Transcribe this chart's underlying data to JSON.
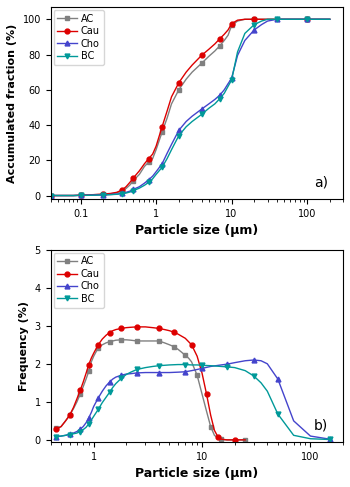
{
  "title_a": "a)",
  "title_b": "b)",
  "xlabel": "Particle size (μm)",
  "ylabel_a": "Accumulated fraction (%)",
  "ylabel_b": "Frequency (%)",
  "ylim_a": [
    -2,
    107
  ],
  "ylim_b": [
    -0.05,
    5
  ],
  "xlim_a": [
    0.04,
    300
  ],
  "xlim_b": [
    0.4,
    200
  ],
  "yticks_a": [
    0,
    20,
    40,
    60,
    80,
    100
  ],
  "yticks_b": [
    0,
    1,
    2,
    3,
    4,
    5
  ],
  "colors": {
    "AC": "#808080",
    "Cau": "#dd0000",
    "Cho": "#4444cc",
    "BC": "#009999"
  },
  "markers": {
    "AC": "s",
    "Cau": "o",
    "Cho": "^",
    "BC": "v"
  },
  "series_names": [
    "AC",
    "Cau",
    "Cho",
    "BC"
  ],
  "cumulative": {
    "AC": {
      "x": [
        0.04,
        0.06,
        0.08,
        0.1,
        0.12,
        0.15,
        0.2,
        0.25,
        0.3,
        0.35,
        0.4,
        0.45,
        0.5,
        0.6,
        0.7,
        0.8,
        0.9,
        1.0,
        1.2,
        1.4,
        1.6,
        2.0,
        2.5,
        3.0,
        4.0,
        5.0,
        6.0,
        7.0,
        8.0,
        9.0,
        10.0,
        12.0,
        15.0,
        20.0,
        30.0,
        50.0,
        100.0,
        200.0
      ],
      "y": [
        0.0,
        0.0,
        0.0,
        0.2,
        0.3,
        0.5,
        0.7,
        1.0,
        1.5,
        2.5,
        4.0,
        6.0,
        8.5,
        12.0,
        16.5,
        19.0,
        21.0,
        26.0,
        36.0,
        44.0,
        52.0,
        60.0,
        66.0,
        70.0,
        75.0,
        79.0,
        82.0,
        85.0,
        88.0,
        91.0,
        96.5,
        99.0,
        100.0,
        100.0,
        100.0,
        100.0,
        100.0,
        100.0
      ]
    },
    "Cau": {
      "x": [
        0.04,
        0.06,
        0.08,
        0.1,
        0.12,
        0.15,
        0.2,
        0.25,
        0.3,
        0.35,
        0.4,
        0.45,
        0.5,
        0.6,
        0.7,
        0.8,
        0.9,
        1.0,
        1.2,
        1.4,
        1.6,
        2.0,
        2.5,
        3.0,
        4.0,
        5.0,
        6.0,
        7.0,
        8.0,
        9.0,
        10.0,
        12.0,
        15.0,
        20.0,
        30.0,
        50.0,
        100.0,
        200.0
      ],
      "y": [
        0.0,
        0.0,
        0.0,
        0.2,
        0.3,
        0.5,
        0.8,
        1.2,
        1.8,
        3.0,
        5.0,
        7.5,
        10.0,
        14.0,
        18.0,
        21.0,
        23.5,
        28.0,
        39.0,
        48.0,
        56.0,
        64.0,
        70.0,
        74.0,
        79.5,
        83.0,
        86.0,
        89.0,
        91.5,
        94.0,
        97.5,
        99.5,
        100.0,
        100.0,
        100.0,
        100.0,
        100.0,
        100.0
      ]
    },
    "Cho": {
      "x": [
        0.04,
        0.06,
        0.08,
        0.1,
        0.12,
        0.15,
        0.2,
        0.25,
        0.3,
        0.35,
        0.4,
        0.45,
        0.5,
        0.6,
        0.7,
        0.8,
        0.9,
        1.0,
        1.2,
        1.4,
        1.6,
        2.0,
        2.5,
        3.0,
        4.0,
        5.0,
        6.0,
        7.0,
        8.0,
        9.0,
        10.0,
        12.0,
        15.0,
        20.0,
        25.0,
        30.0,
        40.0,
        50.0,
        70.0,
        100.0,
        200.0
      ],
      "y": [
        0.0,
        0.0,
        0.0,
        0.1,
        0.2,
        0.3,
        0.4,
        0.6,
        0.8,
        1.2,
        1.8,
        2.5,
        3.5,
        5.0,
        7.0,
        9.0,
        11.0,
        13.5,
        18.0,
        24.0,
        29.0,
        37.0,
        42.0,
        45.0,
        49.0,
        52.0,
        54.5,
        57.0,
        60.0,
        63.5,
        66.5,
        79.5,
        88.0,
        94.0,
        97.0,
        99.0,
        100.0,
        100.0,
        100.0,
        100.0,
        100.0
      ]
    },
    "BC": {
      "x": [
        0.04,
        0.06,
        0.08,
        0.1,
        0.12,
        0.15,
        0.2,
        0.25,
        0.3,
        0.35,
        0.4,
        0.45,
        0.5,
        0.6,
        0.7,
        0.8,
        0.9,
        1.0,
        1.2,
        1.4,
        1.6,
        2.0,
        2.5,
        3.0,
        4.0,
        5.0,
        6.0,
        7.0,
        8.0,
        9.0,
        10.0,
        12.0,
        15.0,
        20.0,
        25.0,
        30.0,
        40.0,
        50.0,
        70.0,
        100.0,
        200.0
      ],
      "y": [
        0.0,
        0.0,
        0.0,
        0.1,
        0.1,
        0.2,
        0.3,
        0.5,
        0.7,
        1.0,
        1.4,
        2.0,
        2.8,
        4.2,
        5.8,
        7.5,
        9.5,
        12.0,
        16.0,
        21.0,
        26.0,
        34.0,
        39.0,
        42.0,
        46.0,
        49.5,
        52.0,
        55.0,
        58.0,
        62.0,
        65.5,
        81.5,
        92.0,
        97.0,
        99.0,
        100.0,
        100.0,
        100.0,
        100.0,
        100.0,
        100.0
      ]
    }
  },
  "frequency": {
    "AC": {
      "x": [
        0.45,
        0.5,
        0.55,
        0.6,
        0.65,
        0.7,
        0.75,
        0.8,
        0.85,
        0.9,
        0.95,
        1.0,
        1.1,
        1.2,
        1.3,
        1.4,
        1.5,
        1.6,
        1.8,
        2.0,
        2.2,
        2.5,
        3.0,
        3.5,
        4.0,
        4.5,
        5.0,
        5.5,
        6.0,
        6.5,
        7.0,
        7.5,
        8.0,
        9.0,
        10.0,
        11.0,
        12.0,
        13.0,
        14.0,
        15.0,
        17.0,
        20.0,
        25.0
      ],
      "y": [
        0.3,
        0.35,
        0.5,
        0.65,
        0.82,
        1.0,
        1.2,
        1.4,
        1.6,
        1.8,
        2.05,
        2.2,
        2.42,
        2.5,
        2.55,
        2.58,
        2.6,
        2.62,
        2.63,
        2.63,
        2.62,
        2.6,
        2.6,
        2.6,
        2.6,
        2.55,
        2.5,
        2.45,
        2.38,
        2.3,
        2.22,
        2.15,
        2.05,
        1.7,
        1.2,
        0.75,
        0.35,
        0.12,
        0.05,
        0.01,
        0.0,
        0.0,
        0.0
      ]
    },
    "Cau": {
      "x": [
        0.45,
        0.5,
        0.55,
        0.6,
        0.65,
        0.7,
        0.75,
        0.8,
        0.85,
        0.9,
        0.95,
        1.0,
        1.1,
        1.2,
        1.3,
        1.4,
        1.5,
        1.6,
        1.8,
        2.0,
        2.2,
        2.5,
        3.0,
        3.5,
        4.0,
        4.5,
        5.0,
        5.5,
        6.0,
        7.0,
        8.0,
        9.0,
        10.0,
        11.0,
        12.0,
        13.0,
        14.0,
        15.0,
        17.0,
        20.0,
        25.0
      ],
      "y": [
        0.28,
        0.35,
        0.5,
        0.65,
        0.85,
        1.08,
        1.3,
        1.52,
        1.75,
        1.98,
        2.15,
        2.28,
        2.5,
        2.65,
        2.75,
        2.82,
        2.87,
        2.9,
        2.93,
        2.95,
        2.96,
        2.97,
        2.97,
        2.95,
        2.93,
        2.9,
        2.87,
        2.83,
        2.78,
        2.67,
        2.5,
        2.2,
        1.75,
        1.2,
        0.65,
        0.25,
        0.08,
        0.02,
        0.0,
        0.0,
        0.0
      ]
    },
    "Cho": {
      "x": [
        0.45,
        0.5,
        0.55,
        0.6,
        0.65,
        0.7,
        0.75,
        0.8,
        0.85,
        0.9,
        0.95,
        1.0,
        1.1,
        1.2,
        1.3,
        1.4,
        1.5,
        1.6,
        1.8,
        2.0,
        2.2,
        2.5,
        3.0,
        3.5,
        4.0,
        5.0,
        6.0,
        7.0,
        8.0,
        9.0,
        10.0,
        12.0,
        15.0,
        17.0,
        20.0,
        25.0,
        30.0,
        35.0,
        40.0,
        50.0,
        70.0,
        100.0,
        150.0
      ],
      "y": [
        0.08,
        0.1,
        0.12,
        0.15,
        0.18,
        0.22,
        0.28,
        0.35,
        0.45,
        0.58,
        0.72,
        0.88,
        1.1,
        1.28,
        1.42,
        1.52,
        1.6,
        1.65,
        1.7,
        1.73,
        1.74,
        1.76,
        1.77,
        1.77,
        1.77,
        1.77,
        1.78,
        1.79,
        1.82,
        1.85,
        1.88,
        1.93,
        1.97,
        1.99,
        2.03,
        2.08,
        2.1,
        2.08,
        2.0,
        1.6,
        0.5,
        0.1,
        0.02
      ]
    },
    "BC": {
      "x": [
        0.45,
        0.5,
        0.55,
        0.6,
        0.65,
        0.7,
        0.75,
        0.8,
        0.85,
        0.9,
        0.95,
        1.0,
        1.1,
        1.2,
        1.3,
        1.4,
        1.5,
        1.6,
        1.8,
        2.0,
        2.2,
        2.5,
        3.0,
        3.5,
        4.0,
        5.0,
        6.0,
        7.0,
        8.0,
        9.0,
        10.0,
        12.0,
        15.0,
        17.0,
        20.0,
        25.0,
        30.0,
        35.0,
        40.0,
        50.0,
        70.0,
        100.0,
        150.0
      ],
      "y": [
        0.08,
        0.1,
        0.12,
        0.14,
        0.16,
        0.18,
        0.22,
        0.27,
        0.33,
        0.42,
        0.52,
        0.62,
        0.8,
        0.98,
        1.12,
        1.25,
        1.38,
        1.48,
        1.62,
        1.72,
        1.78,
        1.85,
        1.9,
        1.93,
        1.95,
        1.97,
        1.98,
        1.98,
        1.97,
        1.97,
        1.96,
        1.95,
        1.93,
        1.92,
        1.9,
        1.82,
        1.68,
        1.5,
        1.28,
        0.68,
        0.12,
        0.03,
        0.01
      ]
    }
  }
}
